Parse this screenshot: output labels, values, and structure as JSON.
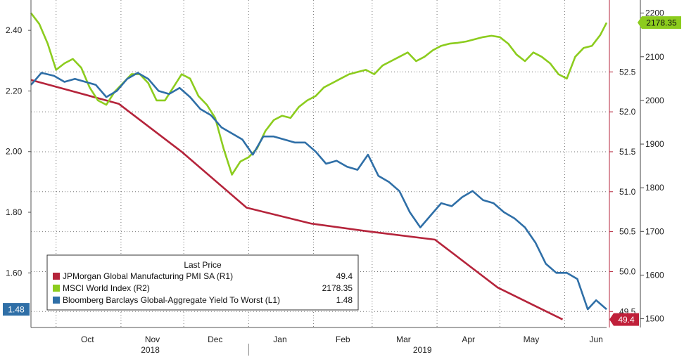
{
  "chart_data": {
    "type": "line",
    "x_axis": {
      "months": [
        "Oct",
        "Nov",
        "Dec",
        "Jan",
        "Feb",
        "Mar",
        "Apr",
        "May",
        "Jun"
      ],
      "years": [
        "2018",
        "2019"
      ],
      "range": [
        "2018-09-19",
        "2019-06-21"
      ]
    },
    "axes": {
      "L1": {
        "ticks": [
          "1.60",
          "1.80",
          "2.00",
          "2.20",
          "2.40"
        ],
        "range": [
          1.42,
          2.5
        ]
      },
      "R1": {
        "ticks": [
          "49.5",
          "50.0",
          "50.5",
          "51.0",
          "51.5",
          "52.0",
          "52.5"
        ],
        "range": [
          49.3,
          53.4
        ]
      },
      "R2": {
        "ticks": [
          "1500",
          "1600",
          "1700",
          "1800",
          "1900",
          "2000",
          "2100",
          "2200"
        ],
        "range": [
          1480,
          2230
        ]
      }
    },
    "legend": {
      "title": "Last Price",
      "placement": "bottom-left",
      "entries": [
        {
          "name": "JPMorgan Global Manufacturing PMI SA  (R1)",
          "value": "49.4",
          "color": "#b5243b"
        },
        {
          "name": "MSCI World Index  (R2)",
          "value": "2178.35",
          "color": "#8ccc1e"
        },
        {
          "name": "Bloomberg Barclays Global-Aggregate Yield To Worst  (L1)",
          "value": "1.48",
          "color": "#2f6fa7"
        }
      ]
    },
    "last_value_tags": [
      {
        "text": "1.48",
        "axis": "L1",
        "color": "#2f6fa7"
      },
      {
        "text": "49.4",
        "axis": "R1",
        "color": "#c0203a"
      },
      {
        "text": "2178.35",
        "axis": "R2",
        "color": "#8ccc1e"
      }
    ],
    "series": [
      {
        "axis": "R1",
        "color": "#b5243b",
        "points": [
          [
            "2018-09-19",
            52.4
          ],
          [
            "2018-10-31",
            52.1
          ],
          [
            "2018-11-30",
            51.5
          ],
          [
            "2018-12-31",
            50.8
          ],
          [
            "2019-01-31",
            50.6
          ],
          [
            "2019-02-28",
            50.5
          ],
          [
            "2019-03-31",
            50.4
          ],
          [
            "2019-04-30",
            49.8
          ],
          [
            "2019-05-31",
            49.4
          ]
        ]
      },
      {
        "axis": "R2",
        "color": "#8ccc1e",
        "points": [
          [
            "2018-09-19",
            2200
          ],
          [
            "2018-09-23",
            2175
          ],
          [
            "2018-09-27",
            2130
          ],
          [
            "2018-10-01",
            2070
          ],
          [
            "2018-10-05",
            2085
          ],
          [
            "2018-10-09",
            2095
          ],
          [
            "2018-10-13",
            2075
          ],
          [
            "2018-10-17",
            2030
          ],
          [
            "2018-10-21",
            2000
          ],
          [
            "2018-10-25",
            1990
          ],
          [
            "2018-10-29",
            2020
          ],
          [
            "2018-11-02",
            2040
          ],
          [
            "2018-11-06",
            2060
          ],
          [
            "2018-11-10",
            2060
          ],
          [
            "2018-11-14",
            2040
          ],
          [
            "2018-11-18",
            2000
          ],
          [
            "2018-11-22",
            2000
          ],
          [
            "2018-11-26",
            2030
          ],
          [
            "2018-11-30",
            2060
          ],
          [
            "2018-12-04",
            2050
          ],
          [
            "2018-12-08",
            2010
          ],
          [
            "2018-12-12",
            1990
          ],
          [
            "2018-12-16",
            1960
          ],
          [
            "2018-12-20",
            1890
          ],
          [
            "2018-12-24",
            1830
          ],
          [
            "2018-12-28",
            1860
          ],
          [
            "2019-01-01",
            1870
          ],
          [
            "2019-01-05",
            1890
          ],
          [
            "2019-01-09",
            1930
          ],
          [
            "2019-01-13",
            1955
          ],
          [
            "2019-01-17",
            1965
          ],
          [
            "2019-01-21",
            1960
          ],
          [
            "2019-01-25",
            1985
          ],
          [
            "2019-01-29",
            2000
          ],
          [
            "2019-02-02",
            2010
          ],
          [
            "2019-02-06",
            2030
          ],
          [
            "2019-02-10",
            2040
          ],
          [
            "2019-02-14",
            2050
          ],
          [
            "2019-02-18",
            2060
          ],
          [
            "2019-02-22",
            2065
          ],
          [
            "2019-02-26",
            2070
          ],
          [
            "2019-03-02",
            2060
          ],
          [
            "2019-03-06",
            2080
          ],
          [
            "2019-03-10",
            2090
          ],
          [
            "2019-03-14",
            2100
          ],
          [
            "2019-03-18",
            2110
          ],
          [
            "2019-03-22",
            2090
          ],
          [
            "2019-03-26",
            2100
          ],
          [
            "2019-03-30",
            2115
          ],
          [
            "2019-04-03",
            2125
          ],
          [
            "2019-04-07",
            2130
          ],
          [
            "2019-04-11",
            2132
          ],
          [
            "2019-04-15",
            2135
          ],
          [
            "2019-04-19",
            2140
          ],
          [
            "2019-04-23",
            2145
          ],
          [
            "2019-04-27",
            2148
          ],
          [
            "2019-05-01",
            2145
          ],
          [
            "2019-05-05",
            2130
          ],
          [
            "2019-05-09",
            2105
          ],
          [
            "2019-05-13",
            2090
          ],
          [
            "2019-05-17",
            2110
          ],
          [
            "2019-05-21",
            2100
          ],
          [
            "2019-05-25",
            2085
          ],
          [
            "2019-05-29",
            2060
          ],
          [
            "2019-06-02",
            2050
          ],
          [
            "2019-06-06",
            2100
          ],
          [
            "2019-06-10",
            2120
          ],
          [
            "2019-06-14",
            2125
          ],
          [
            "2019-06-18",
            2150
          ],
          [
            "2019-06-21",
            2178
          ]
        ]
      },
      {
        "axis": "L1",
        "color": "#2f6fa7",
        "points": [
          [
            "2018-09-19",
            2.22
          ],
          [
            "2018-09-24",
            2.26
          ],
          [
            "2018-09-30",
            2.25
          ],
          [
            "2018-10-05",
            2.23
          ],
          [
            "2018-10-10",
            2.24
          ],
          [
            "2018-10-15",
            2.23
          ],
          [
            "2018-10-20",
            2.22
          ],
          [
            "2018-10-25",
            2.18
          ],
          [
            "2018-10-30",
            2.2
          ],
          [
            "2018-11-04",
            2.24
          ],
          [
            "2018-11-09",
            2.26
          ],
          [
            "2018-11-14",
            2.24
          ],
          [
            "2018-11-19",
            2.2
          ],
          [
            "2018-11-24",
            2.19
          ],
          [
            "2018-11-29",
            2.21
          ],
          [
            "2018-12-04",
            2.18
          ],
          [
            "2018-12-09",
            2.14
          ],
          [
            "2018-12-14",
            2.12
          ],
          [
            "2018-12-19",
            2.08
          ],
          [
            "2018-12-24",
            2.06
          ],
          [
            "2018-12-29",
            2.04
          ],
          [
            "2019-01-03",
            1.99
          ],
          [
            "2019-01-08",
            2.05
          ],
          [
            "2019-01-13",
            2.05
          ],
          [
            "2019-01-18",
            2.04
          ],
          [
            "2019-01-23",
            2.03
          ],
          [
            "2019-01-28",
            2.03
          ],
          [
            "2019-02-02",
            2.0
          ],
          [
            "2019-02-07",
            1.96
          ],
          [
            "2019-02-12",
            1.97
          ],
          [
            "2019-02-17",
            1.95
          ],
          [
            "2019-02-22",
            1.94
          ],
          [
            "2019-02-27",
            1.99
          ],
          [
            "2019-03-04",
            1.92
          ],
          [
            "2019-03-09",
            1.9
          ],
          [
            "2019-03-14",
            1.87
          ],
          [
            "2019-03-19",
            1.8
          ],
          [
            "2019-03-24",
            1.75
          ],
          [
            "2019-03-29",
            1.79
          ],
          [
            "2019-04-03",
            1.83
          ],
          [
            "2019-04-08",
            1.82
          ],
          [
            "2019-04-13",
            1.85
          ],
          [
            "2019-04-18",
            1.87
          ],
          [
            "2019-04-23",
            1.84
          ],
          [
            "2019-04-28",
            1.83
          ],
          [
            "2019-05-03",
            1.8
          ],
          [
            "2019-05-08",
            1.78
          ],
          [
            "2019-05-13",
            1.75
          ],
          [
            "2019-05-18",
            1.7
          ],
          [
            "2019-05-23",
            1.63
          ],
          [
            "2019-05-28",
            1.6
          ],
          [
            "2019-06-02",
            1.6
          ],
          [
            "2019-06-07",
            1.58
          ],
          [
            "2019-06-12",
            1.48
          ],
          [
            "2019-06-16",
            1.51
          ],
          [
            "2019-06-21",
            1.48
          ]
        ]
      }
    ]
  }
}
